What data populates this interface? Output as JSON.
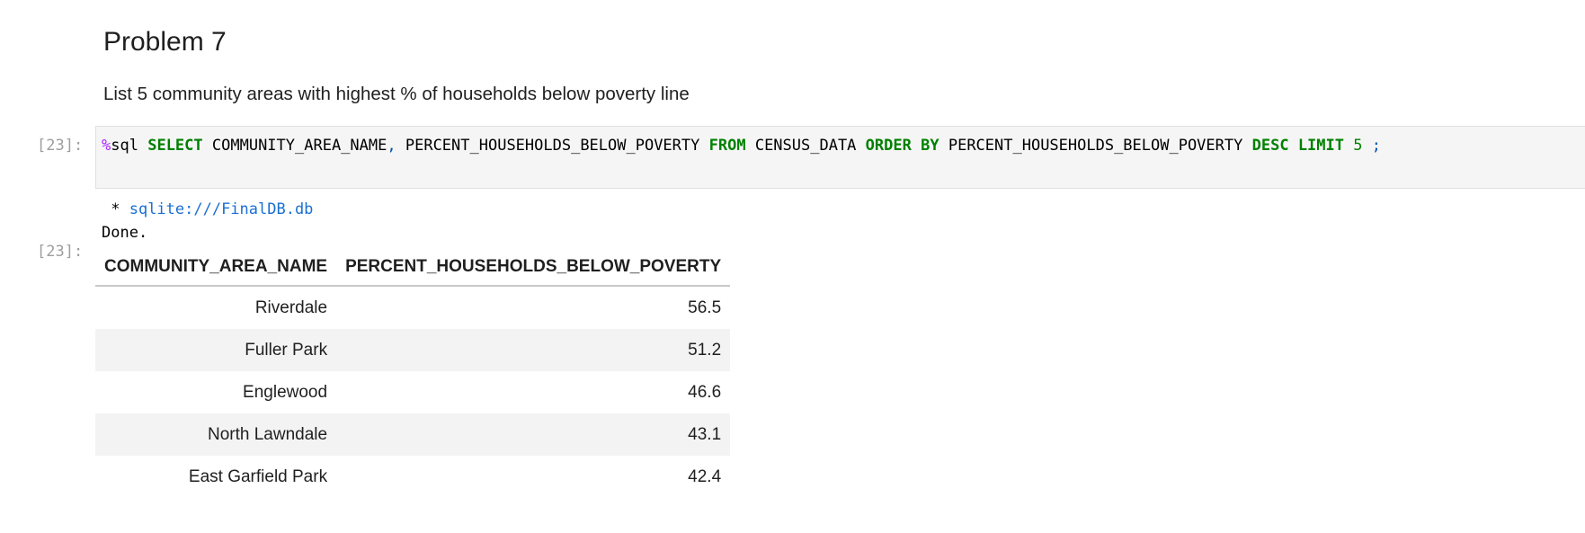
{
  "markdown": {
    "title": "Problem 7",
    "description": "List 5 community areas with highest % of households below poverty line"
  },
  "code_cell": {
    "prompt": "[23]:",
    "tokens": {
      "magic": "%",
      "magic_name": "sql",
      "select": "SELECT",
      "col1": "COMMUNITY_AREA_NAME",
      "comma": ",",
      "col2": "PERCENT_HOUSEHOLDS_BELOW_POVERTY",
      "from": "FROM",
      "table": "CENSUS_DATA",
      "order": "ORDER",
      "by": "BY",
      "order_col": "PERCENT_HOUSEHOLDS_BELOW_POVERTY",
      "desc": "DESC",
      "limit": "LIMIT",
      "limit_val": "5",
      "semicolon": ";"
    }
  },
  "output": {
    "stdout_bullet": " * ",
    "connection": "sqlite:///FinalDB.db",
    "status": "Done.",
    "prompt": "[23]:",
    "table": {
      "headers": [
        "COMMUNITY_AREA_NAME",
        "PERCENT_HOUSEHOLDS_BELOW_POVERTY"
      ],
      "rows": [
        [
          "Riverdale",
          "56.5"
        ],
        [
          "Fuller Park",
          "51.2"
        ],
        [
          "Englewood",
          "46.6"
        ],
        [
          "North Lawndale",
          "43.1"
        ],
        [
          "East Garfield Park",
          "42.4"
        ]
      ]
    }
  }
}
